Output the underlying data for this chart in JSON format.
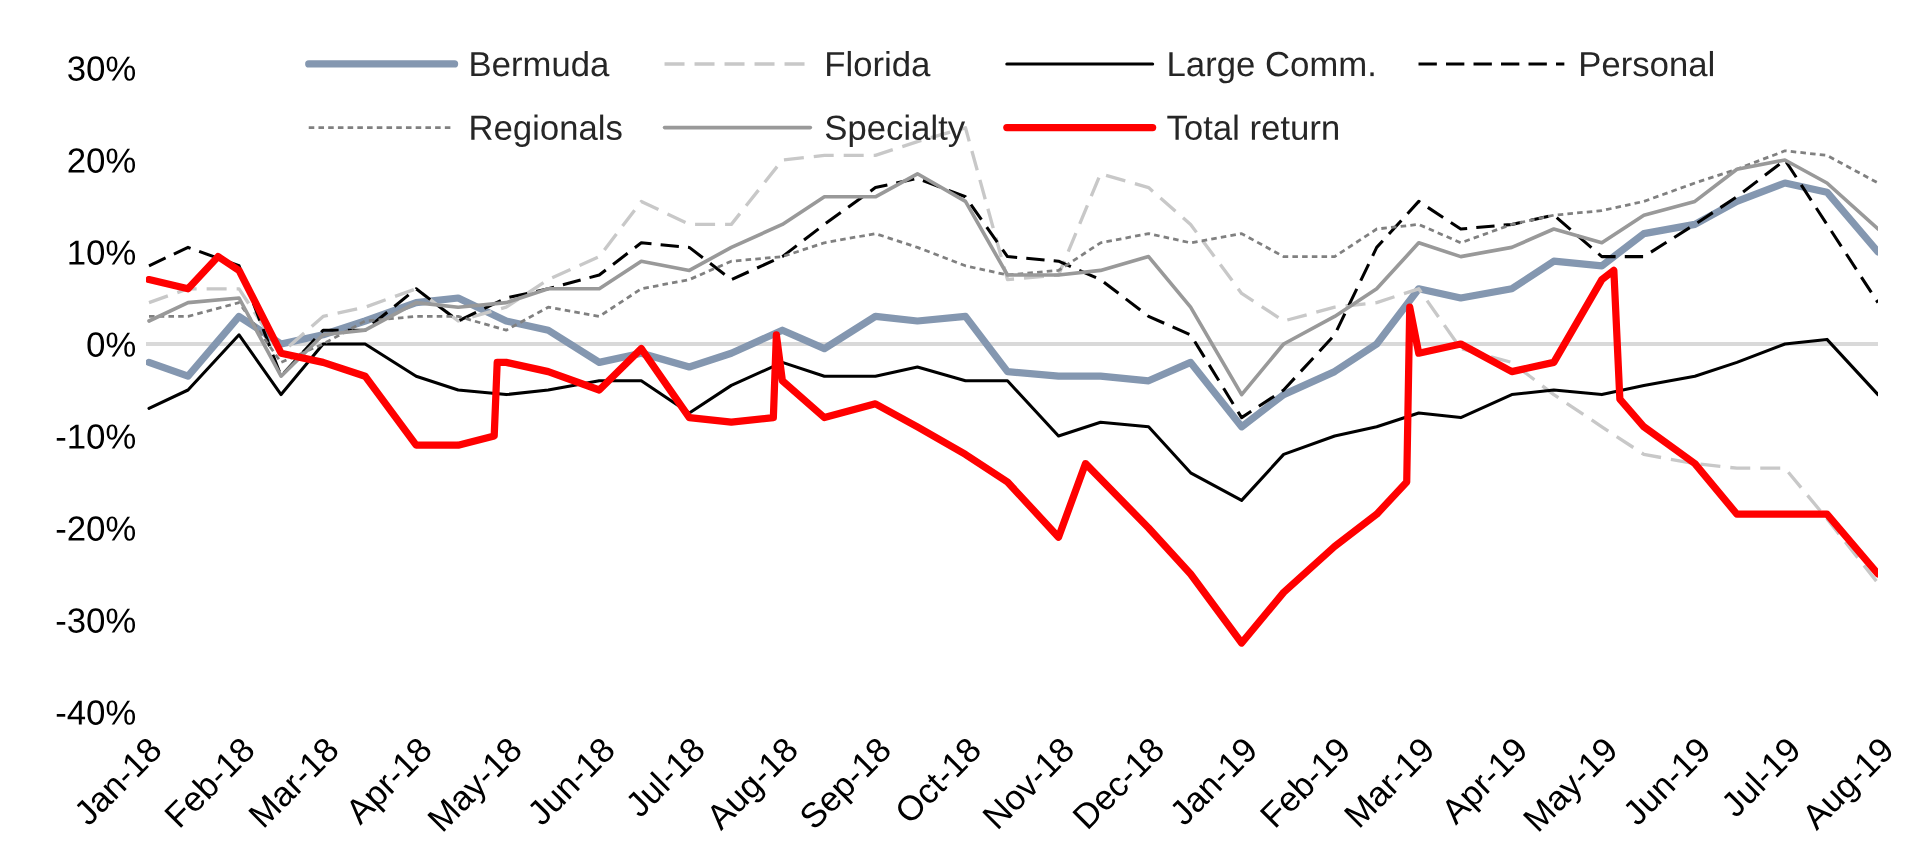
{
  "chart_data": {
    "type": "line",
    "x": [
      "2018-01-02",
      "2018-01-15",
      "2018-02-01",
      "2018-02-15",
      "2018-03-01",
      "2018-03-15",
      "2018-04-01",
      "2018-04-15",
      "2018-05-01",
      "2018-05-15",
      "2018-06-01",
      "2018-06-15",
      "2018-07-01",
      "2018-07-15",
      "2018-08-01",
      "2018-08-15",
      "2018-09-01",
      "2018-09-15",
      "2018-10-01",
      "2018-10-15",
      "2018-11-01",
      "2018-11-15",
      "2018-12-01",
      "2018-12-15",
      "2019-01-01",
      "2019-01-15",
      "2019-02-01",
      "2019-02-15",
      "2019-03-01",
      "2019-03-15",
      "2019-04-01",
      "2019-04-15",
      "2019-05-01",
      "2019-05-15",
      "2019-06-01",
      "2019-06-15",
      "2019-07-01",
      "2019-07-15",
      "2019-08-01"
    ],
    "series": [
      {
        "name": "Bermuda",
        "color": "#8497b0",
        "line_style": "solid",
        "values": [
          -2,
          -3.5,
          3,
          0,
          1,
          2.5,
          4.5,
          5,
          2.5,
          1.5,
          -2,
          -1,
          -2.5,
          -1,
          1.5,
          -0.5,
          3,
          2.5,
          3,
          -3,
          -3.5,
          -3.5,
          -4,
          -2,
          -9,
          -5.5,
          -3,
          0,
          6,
          5,
          6,
          9,
          8.5,
          12,
          13,
          15.5,
          17.5,
          16.5,
          10
        ]
      },
      {
        "name": "Florida",
        "color": "#c8c8c8",
        "line_style": "dashed",
        "values": [
          4.5,
          6,
          6,
          -1,
          3,
          4,
          6,
          2.5,
          4,
          7,
          9.5,
          15.5,
          13,
          13,
          20,
          20.5,
          20.5,
          22,
          23.5,
          7,
          7.5,
          18.5,
          17,
          13,
          5.5,
          2.5,
          4,
          4.5,
          6,
          -0.5,
          -2,
          -5.5,
          -9,
          -12,
          -13,
          -13.5,
          -13.5,
          -19,
          -26
        ]
      },
      {
        "name": "Large Comm.",
        "color": "#000000",
        "line_style": "solid",
        "values": [
          -7,
          -5,
          1,
          -5.5,
          0,
          0,
          -3.5,
          -5,
          -5.5,
          -5,
          -4,
          -4,
          -7.5,
          -4.5,
          -2,
          -3.5,
          -3.5,
          -2.5,
          -4,
          -4,
          -10,
          -8.5,
          -9,
          -14,
          -17,
          -12,
          -10,
          -9,
          -7.5,
          -8,
          -5.5,
          -5,
          -5.5,
          -4.5,
          -3.5,
          -2,
          0,
          0.5,
          -5.5
        ]
      },
      {
        "name": "Personal",
        "color": "#000000",
        "line_style": "dashed",
        "values": [
          8.5,
          10.5,
          8.5,
          -3.5,
          1.5,
          1.5,
          6,
          2.5,
          5,
          6,
          7.5,
          11,
          10.5,
          7,
          9.5,
          13,
          17,
          18,
          16,
          9.5,
          9,
          7,
          3,
          1,
          -8,
          -5,
          1,
          10.5,
          15.5,
          12.5,
          13,
          14,
          9.5,
          9.5,
          13,
          16,
          20,
          13,
          4.5
        ]
      },
      {
        "name": "Regionals",
        "color": "#808080",
        "line_style": "dotted",
        "values": [
          3,
          3,
          4.5,
          -2,
          0,
          2.5,
          3,
          3,
          1.5,
          4,
          3,
          6,
          7,
          9,
          9.5,
          11,
          12,
          10.5,
          8.5,
          7.5,
          8,
          11,
          12,
          11,
          12,
          9.5,
          9.5,
          12.5,
          13,
          11,
          13,
          14,
          14.5,
          15.5,
          17.5,
          19,
          21,
          20.5,
          17.5
        ]
      },
      {
        "name": "Specialty",
        "color": "#999999",
        "line_style": "solid",
        "values": [
          2.5,
          4.5,
          5,
          -3.5,
          1,
          1.5,
          4.5,
          4,
          4.5,
          6,
          6,
          9,
          8,
          10.5,
          13,
          16,
          16,
          18.5,
          15.5,
          7.5,
          7.5,
          8,
          9.5,
          4,
          -5.5,
          0,
          3,
          6,
          11,
          9.5,
          10.5,
          12.5,
          11,
          14,
          15.5,
          19,
          20,
          17.5,
          12.5
        ]
      },
      {
        "name": "Total return",
        "color": "#ff0000",
        "line_style": "solid",
        "x": [
          "2018-01-02",
          "2018-01-15",
          "2018-01-25",
          "2018-02-01",
          "2018-02-15",
          "2018-03-01",
          "2018-03-15",
          "2018-04-01",
          "2018-04-15",
          "2018-04-27",
          "2018-04-28",
          "2018-05-01",
          "2018-05-15",
          "2018-06-01",
          "2018-06-15",
          "2018-07-01",
          "2018-07-15",
          "2018-07-29",
          "2018-07-30",
          "2018-08-01",
          "2018-08-15",
          "2018-09-01",
          "2018-09-15",
          "2018-10-01",
          "2018-10-15",
          "2018-11-01",
          "2018-11-10",
          "2018-12-01",
          "2018-12-15",
          "2019-01-01",
          "2019-01-15",
          "2019-02-01",
          "2019-02-15",
          "2019-02-25",
          "2019-02-26",
          "2019-03-01",
          "2019-03-15",
          "2019-04-01",
          "2019-04-15",
          "2019-05-01",
          "2019-05-05",
          "2019-05-07",
          "2019-05-15",
          "2019-06-01",
          "2019-06-15",
          "2019-07-01",
          "2019-07-15",
          "2019-08-01"
        ],
        "values": [
          7,
          6,
          9.5,
          8,
          -1,
          -2,
          -3.5,
          -11,
          -11,
          -10,
          -2,
          -2,
          -3,
          -5,
          -0.5,
          -8,
          -8.5,
          -8,
          1,
          -4,
          -8,
          -6.5,
          -9,
          -12,
          -15,
          -21,
          -13,
          -20,
          -25,
          -32.5,
          -27,
          -22,
          -18.5,
          -15,
          4,
          -1,
          0,
          -3,
          -2,
          7,
          8,
          -6,
          -9,
          -13,
          -18.5,
          -18.5,
          -18.5,
          -25
        ]
      }
    ],
    "xlim": [
      "2018-01-01",
      "2019-08-01"
    ],
    "xticks": [
      {
        "value": "2018-01-01",
        "label": "Jan-18"
      },
      {
        "value": "2018-02-01",
        "label": "Feb-18"
      },
      {
        "value": "2018-03-01",
        "label": "Mar-18"
      },
      {
        "value": "2018-04-01",
        "label": "Apr-18"
      },
      {
        "value": "2018-05-01",
        "label": "May-18"
      },
      {
        "value": "2018-06-01",
        "label": "Jun-18"
      },
      {
        "value": "2018-07-01",
        "label": "Jul-18"
      },
      {
        "value": "2018-08-01",
        "label": "Aug-18"
      },
      {
        "value": "2018-09-01",
        "label": "Sep-18"
      },
      {
        "value": "2018-10-01",
        "label": "Oct-18"
      },
      {
        "value": "2018-11-01",
        "label": "Nov-18"
      },
      {
        "value": "2018-12-01",
        "label": "Dec-18"
      },
      {
        "value": "2019-01-01",
        "label": "Jan-19"
      },
      {
        "value": "2019-02-01",
        "label": "Feb-19"
      },
      {
        "value": "2019-03-01",
        "label": "Mar-19"
      },
      {
        "value": "2019-04-01",
        "label": "Apr-19"
      },
      {
        "value": "2019-05-01",
        "label": "May-19"
      },
      {
        "value": "2019-06-01",
        "label": "Jun-19"
      },
      {
        "value": "2019-07-01",
        "label": "Jul-19"
      },
      {
        "value": "2019-08-01",
        "label": "Aug-19"
      }
    ],
    "ylim": [
      -40,
      30
    ],
    "yticks": [
      {
        "value": -40,
        "label": "-40%"
      },
      {
        "value": -30,
        "label": "-30%"
      },
      {
        "value": -20,
        "label": "-20%"
      },
      {
        "value": -10,
        "label": "-10%"
      },
      {
        "value": 0,
        "label": "0%"
      },
      {
        "value": 10,
        "label": "10%"
      },
      {
        "value": 20,
        "label": "20%"
      },
      {
        "value": 30,
        "label": "30%"
      }
    ],
    "ref_lines": [
      {
        "axis": "y",
        "value": 0,
        "color": "#d9d9d9"
      }
    ],
    "legend": "top",
    "grid": false
  }
}
